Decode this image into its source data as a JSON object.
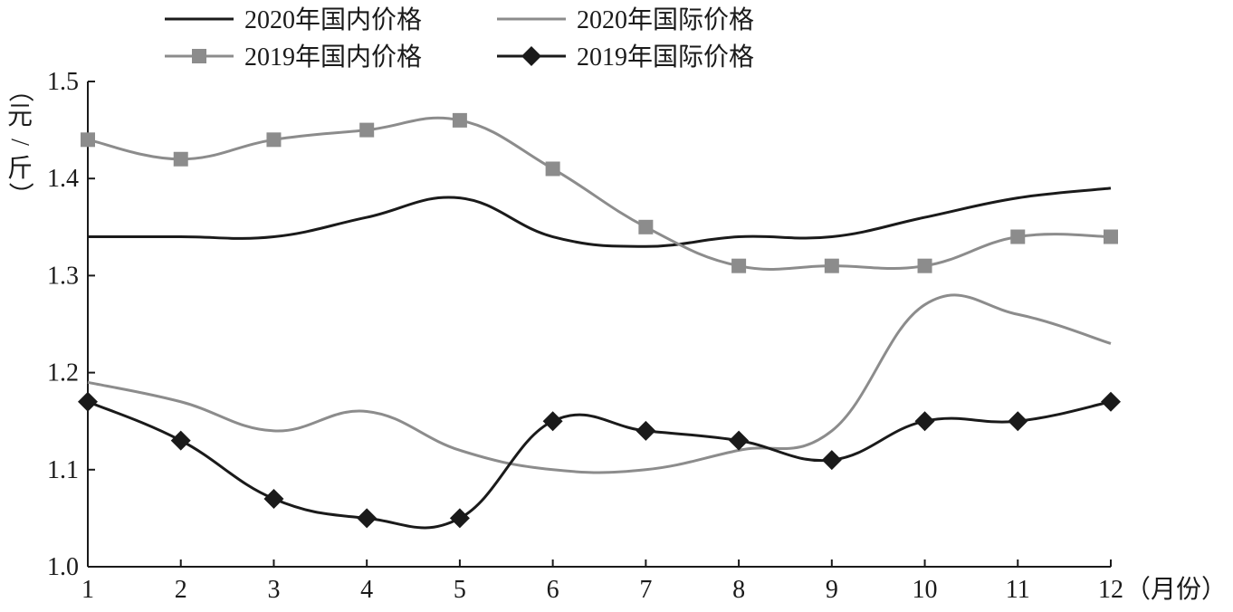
{
  "chart_data": {
    "type": "line",
    "title": "",
    "ylabel": "（元/斤）",
    "xlabel": "（月份）",
    "ylim": [
      1.0,
      1.5
    ],
    "yticks": [
      "1.0",
      "1.1",
      "1.2",
      "1.3",
      "1.4",
      "1.5"
    ],
    "categories": [
      "1",
      "2",
      "3",
      "4",
      "5",
      "6",
      "7",
      "8",
      "9",
      "10",
      "11",
      "12"
    ],
    "legend_position": "top",
    "grid": false,
    "series": [
      {
        "name": "2020年国内价格",
        "color": "#1a1a1a",
        "marker": "none",
        "values": [
          1.34,
          1.34,
          1.34,
          1.36,
          1.38,
          1.34,
          1.33,
          1.34,
          1.34,
          1.36,
          1.38,
          1.39
        ]
      },
      {
        "name": "2020年国际价格",
        "color": "#8c8c8c",
        "marker": "none",
        "values": [
          1.19,
          1.17,
          1.14,
          1.16,
          1.12,
          1.1,
          1.1,
          1.12,
          1.14,
          1.27,
          1.26,
          1.23
        ]
      },
      {
        "name": "2019年国内价格",
        "color": "#8c8c8c",
        "marker": "square",
        "values": [
          1.44,
          1.42,
          1.44,
          1.45,
          1.46,
          1.41,
          1.35,
          1.31,
          1.31,
          1.31,
          1.34,
          1.34
        ]
      },
      {
        "name": "2019年国际价格",
        "color": "#1a1a1a",
        "marker": "diamond",
        "values": [
          1.17,
          1.13,
          1.07,
          1.05,
          1.05,
          1.15,
          1.14,
          1.13,
          1.11,
          1.15,
          1.15,
          1.17
        ]
      }
    ]
  }
}
